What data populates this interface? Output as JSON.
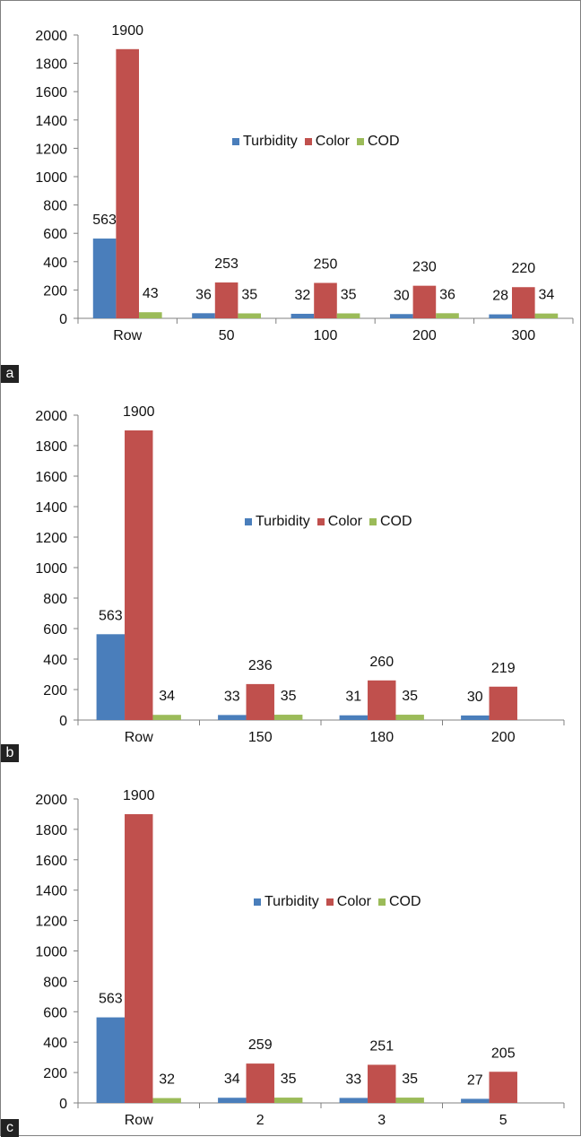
{
  "colors": {
    "Turbidity": "#4a7ebb",
    "Color": "#c0504d",
    "COD": "#9bbb59",
    "axis": "#808080"
  },
  "legend": [
    "Turbidity",
    "Color",
    "COD"
  ],
  "chart_data": [
    {
      "panel": "a",
      "type": "bar",
      "categories": [
        "Row",
        "50",
        "100",
        "200",
        "300"
      ],
      "series": [
        {
          "name": "Turbidity",
          "values": [
            563,
            36,
            32,
            30,
            28
          ]
        },
        {
          "name": "Color",
          "values": [
            1900,
            253,
            250,
            230,
            220
          ]
        },
        {
          "name": "COD",
          "values": [
            43,
            35,
            35,
            36,
            34
          ]
        }
      ],
      "yticks": [
        "0",
        "200",
        "400",
        "600",
        "800",
        "1000",
        "1200",
        "1400",
        "1600",
        "1800",
        "2000"
      ],
      "ylim": [
        0,
        2000
      ],
      "legend_position": "center",
      "grid": false
    },
    {
      "panel": "b",
      "type": "bar",
      "categories": [
        "Row",
        "150",
        "180",
        "200"
      ],
      "series": [
        {
          "name": "Turbidity",
          "values": [
            563,
            33,
            31,
            30
          ]
        },
        {
          "name": "Color",
          "values": [
            1900,
            236,
            260,
            219
          ]
        },
        {
          "name": "COD",
          "values": [
            34,
            35,
            35,
            null
          ]
        }
      ],
      "yticks": [
        "0",
        "200",
        "400",
        "600",
        "800",
        "1000",
        "1200",
        "1400",
        "1600",
        "1800",
        "2000"
      ],
      "ylim": [
        0,
        2000
      ],
      "legend_position": "center",
      "grid": false
    },
    {
      "panel": "c",
      "type": "bar",
      "categories": [
        "Row",
        "2",
        "3",
        "5"
      ],
      "series": [
        {
          "name": "Turbidity",
          "values": [
            563,
            34,
            33,
            27
          ]
        },
        {
          "name": "Color",
          "values": [
            1900,
            259,
            251,
            205
          ]
        },
        {
          "name": "COD",
          "values": [
            32,
            35,
            35,
            null
          ]
        }
      ],
      "yticks": [
        "0",
        "200",
        "400",
        "600",
        "800",
        "1000",
        "1200",
        "1400",
        "1600",
        "1800",
        "2000"
      ],
      "ylim": [
        0,
        2000
      ],
      "legend_position": "center",
      "grid": false
    }
  ]
}
